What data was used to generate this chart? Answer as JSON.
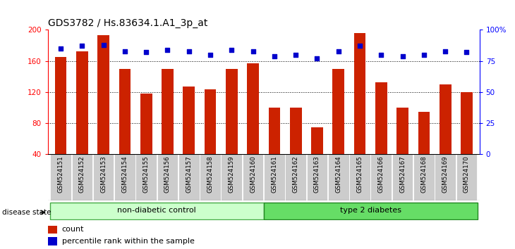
{
  "title": "GDS3782 / Hs.83634.1.A1_3p_at",
  "samples": [
    "GSM524151",
    "GSM524152",
    "GSM524153",
    "GSM524154",
    "GSM524155",
    "GSM524156",
    "GSM524157",
    "GSM524158",
    "GSM524159",
    "GSM524160",
    "GSM524161",
    "GSM524162",
    "GSM524163",
    "GSM524164",
    "GSM524165",
    "GSM524166",
    "GSM524167",
    "GSM524168",
    "GSM524169",
    "GSM524170"
  ],
  "bar_values": [
    165,
    172,
    193,
    150,
    118,
    150,
    127,
    124,
    150,
    157,
    100,
    100,
    75,
    150,
    196,
    133,
    100,
    95,
    130,
    120
  ],
  "percentile_values": [
    85,
    87,
    88,
    83,
    82,
    84,
    83,
    80,
    84,
    83,
    79,
    80,
    77,
    83,
    87,
    80,
    79,
    80,
    83,
    82
  ],
  "bar_color": "#cc2200",
  "dot_color": "#0000cc",
  "left_ylim": [
    40,
    200
  ],
  "left_yticks": [
    40,
    80,
    120,
    160,
    200
  ],
  "right_ylim": [
    0,
    100
  ],
  "right_yticks": [
    0,
    25,
    50,
    75,
    100
  ],
  "right_yticklabels": [
    "0",
    "25",
    "50",
    "75",
    "100%"
  ],
  "grid_values": [
    80,
    120,
    160
  ],
  "non_diabetic_count": 10,
  "type2_count": 10,
  "non_diabetic_label": "non-diabetic control",
  "type2_label": "type 2 diabetes",
  "disease_state_label": "disease state",
  "legend_count_label": "count",
  "legend_percentile_label": "percentile rank within the sample",
  "non_diabetic_color": "#ccffcc",
  "type2_color": "#66dd66",
  "tick_label_bg": "#cccccc",
  "title_fontsize": 10,
  "bar_width": 0.55
}
